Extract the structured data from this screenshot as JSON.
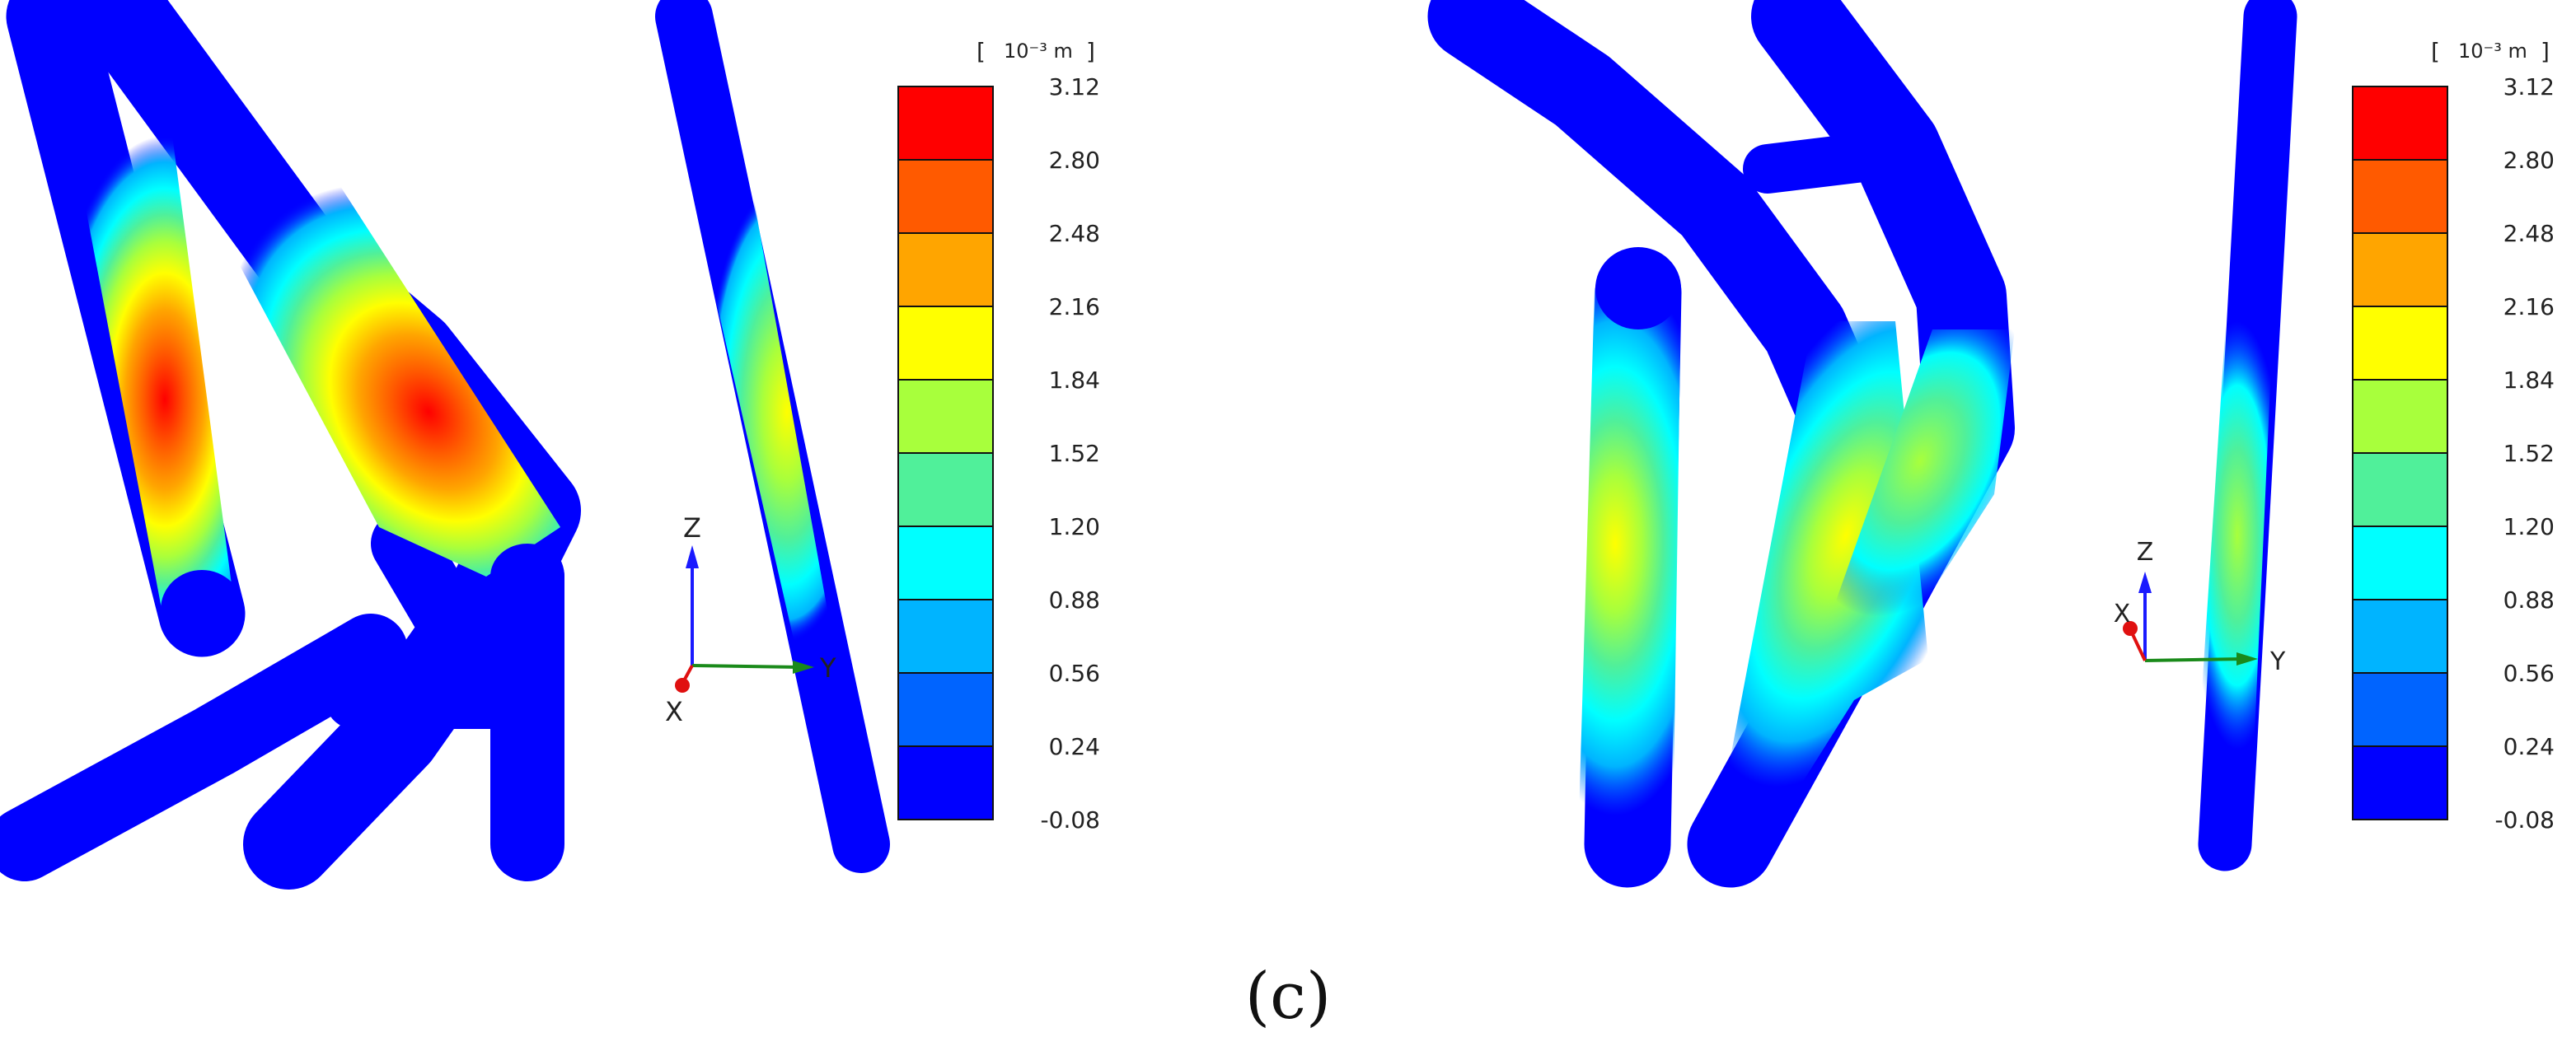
{
  "panels": [
    {
      "legend": {
        "unit_bracket_open": "[",
        "unit": "10⁻³ m",
        "unit_bracket_close": "]",
        "ticks": [
          "3.12",
          "2.80",
          "2.48",
          "2.16",
          "1.84",
          "1.52",
          "1.20",
          "0.88",
          "0.56",
          "0.24",
          "-0.08"
        ],
        "band_colors": [
          "#ff0000",
          "#ff5a00",
          "#ffa500",
          "#ffff00",
          "#a8ff3c",
          "#50f09a",
          "#00ffff",
          "#00b4ff",
          "#0064ff",
          "#0000ff"
        ]
      },
      "triad": {
        "z": "Z",
        "y": "Y",
        "x": "X"
      }
    },
    {
      "legend": {
        "unit_bracket_open": "[",
        "unit": "10⁻³ m",
        "unit_bracket_close": "]",
        "ticks": [
          "3.12",
          "2.80",
          "2.48",
          "2.16",
          "1.84",
          "1.52",
          "1.20",
          "0.88",
          "0.56",
          "0.24",
          "-0.08"
        ],
        "band_colors": [
          "#ff0000",
          "#ff5a00",
          "#ffa500",
          "#ffff00",
          "#a8ff3c",
          "#50f09a",
          "#00ffff",
          "#00b4ff",
          "#0064ff",
          "#0000ff"
        ]
      },
      "triad": {
        "z": "Z",
        "y": "Y",
        "x": "X"
      }
    }
  ],
  "caption": "(c)",
  "colors": {
    "tube_base": "#0000ff",
    "axis_z": "#1a1aff",
    "axis_y": "#1a8a1a",
    "axis_x": "#e01010"
  }
}
